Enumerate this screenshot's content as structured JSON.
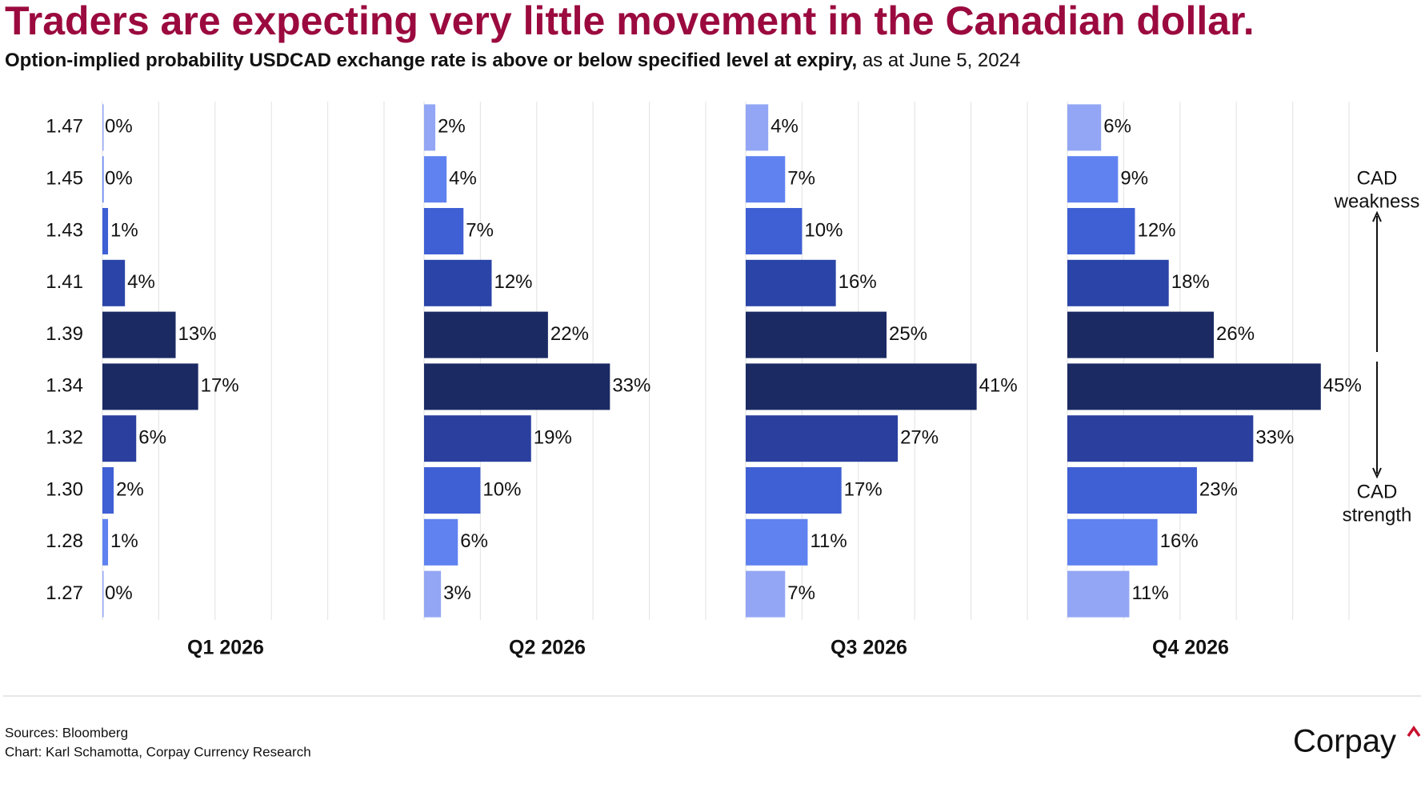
{
  "header": {
    "title": "Traders are expecting very little movement in the Canadian dollar.",
    "subtitle": "Option-implied probability USDCAD exchange rate is above or below specified level at expiry,",
    "subtitle_date": "as at June 5, 2024"
  },
  "chart_data": {
    "type": "bar",
    "orientation": "horizontal",
    "categories": [
      "1.47",
      "1.45",
      "1.43",
      "1.41",
      "1.39",
      "1.34",
      "1.32",
      "1.30",
      "1.28",
      "1.27"
    ],
    "colors": [
      "#93a6f5",
      "#5f82f0",
      "#3f5fd4",
      "#2a44a8",
      "#1b2a63",
      "#1b2a63",
      "#2a3f9e",
      "#3f5fd4",
      "#5f82f0",
      "#93a6f5"
    ],
    "xlim": [
      0,
      50
    ],
    "xticks": [
      0,
      10,
      20,
      30,
      40,
      50
    ],
    "grid": true,
    "series": [
      {
        "name": "Q1 2026",
        "values": [
          0,
          0,
          1,
          4,
          13,
          17,
          6,
          2,
          1,
          0
        ],
        "value_labels": [
          "0%",
          "0%",
          "1%",
          "4%",
          "13%",
          "17%",
          "6%",
          "2%",
          "1%",
          "0%"
        ]
      },
      {
        "name": "Q2 2026",
        "values": [
          2,
          4,
          7,
          12,
          22,
          33,
          19,
          10,
          6,
          3
        ],
        "value_labels": [
          "2%",
          "4%",
          "7%",
          "12%",
          "22%",
          "33%",
          "19%",
          "10%",
          "6%",
          "3%"
        ]
      },
      {
        "name": "Q3 2026",
        "values": [
          4,
          7,
          10,
          16,
          25,
          41,
          27,
          17,
          11,
          7
        ],
        "value_labels": [
          "4%",
          "7%",
          "10%",
          "16%",
          "25%",
          "41%",
          "27%",
          "17%",
          "11%",
          "7%"
        ]
      },
      {
        "name": "Q4 2026",
        "values": [
          6,
          9,
          12,
          18,
          26,
          45,
          33,
          23,
          16,
          11
        ],
        "value_labels": [
          "6%",
          "9%",
          "12%",
          "18%",
          "26%",
          "45%",
          "33%",
          "23%",
          "16%",
          "11%"
        ]
      }
    ],
    "annotations": [
      [
        "CAD",
        "weakness"
      ],
      [
        "CAD",
        "strength"
      ]
    ]
  },
  "footer": {
    "sources": "Sources: Bloomberg",
    "credit": "Chart: Karl Schamotta, Corpay Currency Research",
    "logo": "Corpay"
  }
}
